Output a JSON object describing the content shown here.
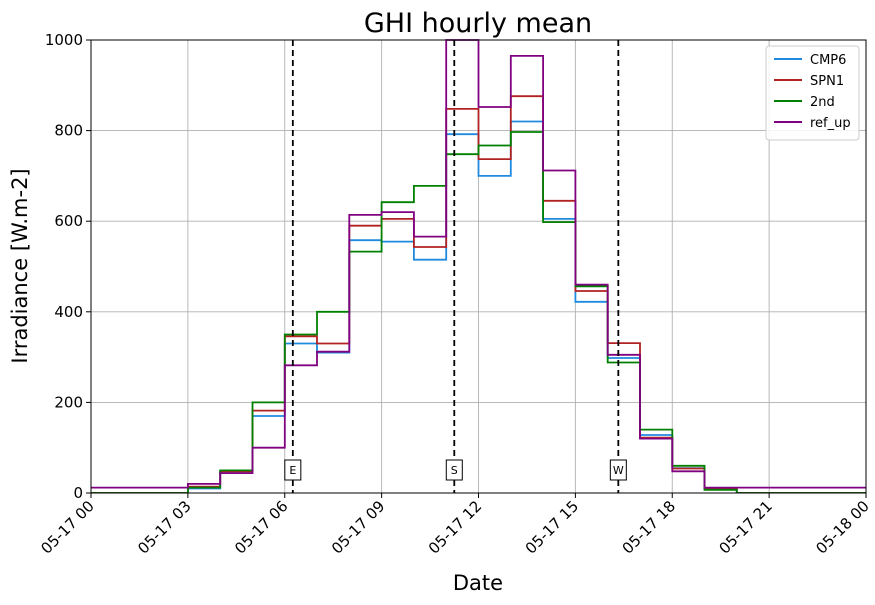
{
  "chart_data": {
    "type": "line",
    "title": "GHI hourly mean",
    "xlabel": "Date",
    "ylabel": "Irradiance [W.m-2]",
    "xlim": [
      0,
      24
    ],
    "ylim": [
      0,
      1000
    ],
    "grid": true,
    "legend_position": "top-right",
    "x_ticks": [
      0,
      3,
      6,
      9,
      12,
      15,
      18,
      21,
      24
    ],
    "x_tick_labels": [
      "05-17 00",
      "05-17 03",
      "05-17 06",
      "05-17 09",
      "05-17 12",
      "05-17 15",
      "05-17 18",
      "05-17 21",
      "05-18 00"
    ],
    "y_ticks": [
      0,
      200,
      400,
      600,
      800,
      1000
    ],
    "y_tick_labels": [
      "0",
      "200",
      "400",
      "600",
      "800",
      "1000"
    ],
    "hours": [
      0,
      1,
      2,
      3,
      4,
      5,
      6,
      7,
      8,
      9,
      10,
      11,
      12,
      13,
      14,
      15,
      16,
      17,
      18,
      19,
      20,
      21,
      22,
      23
    ],
    "series": [
      {
        "name": "CMP6",
        "color": "#1f8ae0",
        "values": [
          0,
          0,
          0,
          10,
          48,
          170,
          330,
          310,
          558,
          555,
          515,
          792,
          700,
          820,
          605,
          422,
          298,
          128,
          55,
          8,
          0,
          0,
          0,
          0
        ]
      },
      {
        "name": "SPN1",
        "color": "#b22222",
        "values": [
          0,
          0,
          0,
          14,
          48,
          182,
          346,
          330,
          590,
          605,
          543,
          848,
          737,
          876,
          645,
          446,
          331,
          122,
          54,
          9,
          0,
          0,
          0,
          0
        ]
      },
      {
        "name": "2nd",
        "color": "#008000",
        "values": [
          0,
          0,
          0,
          12,
          50,
          200,
          350,
          400,
          533,
          642,
          678,
          748,
          767,
          797,
          598,
          456,
          288,
          140,
          60,
          7,
          0,
          0,
          0,
          0
        ]
      },
      {
        "name": "ref_up",
        "color": "#800080",
        "values": [
          12,
          12,
          12,
          20,
          44,
          100,
          282,
          312,
          614,
          620,
          566,
          1000,
          852,
          965,
          712,
          460,
          305,
          120,
          48,
          12,
          12,
          12,
          12,
          12
        ]
      }
    ],
    "vlines": [
      {
        "x": 6.25,
        "label": "E"
      },
      {
        "x": 11.25,
        "label": "S"
      },
      {
        "x": 16.33,
        "label": "W"
      }
    ]
  }
}
